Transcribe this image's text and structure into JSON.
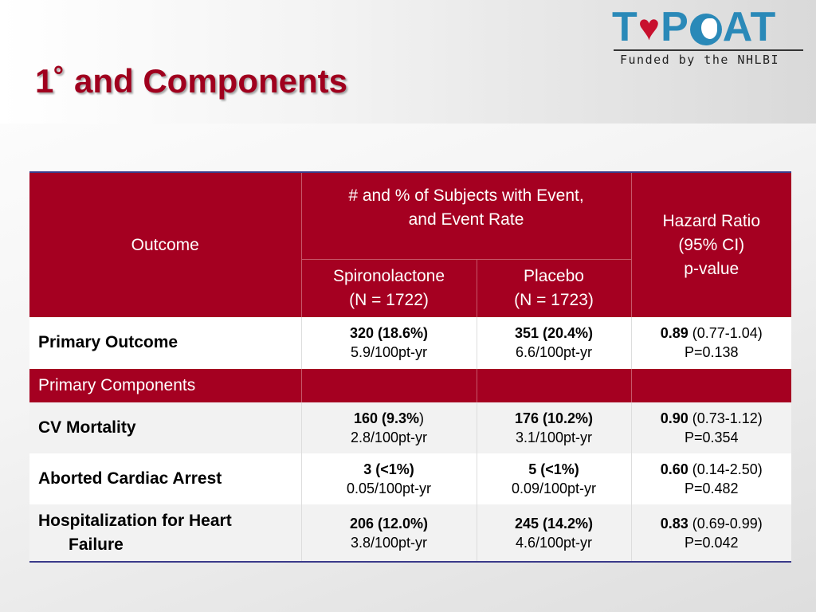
{
  "slide": {
    "title": "1˚ and Components"
  },
  "logo": {
    "letters_left": "T",
    "letter_p": "P",
    "letters_right": "AT",
    "subtitle": "Funded by the NHLBI"
  },
  "table": {
    "header": {
      "outcome": "Outcome",
      "group_line1": "# and % of Subjects with Event,",
      "group_line2": "and Event Rate",
      "spiro_line1": "Spironolactone",
      "spiro_line2": "(N = 1722)",
      "placebo_line1": "Placebo",
      "placebo_line2": "(N = 1723)",
      "hr_line1": "Hazard Ratio",
      "hr_line2": "(95% CI)",
      "hr_line3": "p-value"
    },
    "primary": {
      "label": "Primary Outcome",
      "spiro_count": "320 (18.6%)",
      "spiro_rate": "5.9/100pt-yr",
      "placebo_count": "351 (20.4%)",
      "placebo_rate": "6.6/100pt-yr",
      "hr": "0.89",
      "ci": "(0.77-1.04)",
      "p": "P=0.138"
    },
    "section_label": "Primary  Components",
    "rows": [
      {
        "label": "CV Mortality",
        "spiro_count": "160 (9.3%",
        "spiro_count_tail": ")",
        "spiro_rate": "2.8/100pt-yr",
        "placebo_count": "176 (10.2%)",
        "placebo_rate": "3.1/100pt-yr",
        "hr": "0.90",
        "ci": "(0.73-1.12)",
        "p": "P=0.354"
      },
      {
        "label": "Aborted Cardiac Arrest",
        "spiro_count": "3 (<1%)",
        "spiro_rate": "0.05/100pt-yr",
        "placebo_count": "5 (<1%)",
        "placebo_rate": "0.09/100pt-yr",
        "hr": "0.60",
        "ci": "(0.14-2.50)",
        "p": "P=0.482"
      },
      {
        "label_line1": "Hospitalization for Heart",
        "label_line2": "Failure",
        "spiro_count": "206 (12.0%)",
        "spiro_rate": "3.8/100pt-yr",
        "placebo_count": "245 (14.2%)",
        "placebo_rate": "4.6/100pt-yr",
        "hr": "0.83",
        "ci": "(0.69-0.99)",
        "p": "P=0.042"
      }
    ]
  },
  "colors": {
    "brand_red": "#a50021",
    "title_red": "#a0001e",
    "logo_blue": "#2a89b8",
    "rule_blue": "#3a3a8a"
  },
  "icons": {
    "logo_heart": "heart-icon",
    "logo_globe": "globe-icon"
  }
}
